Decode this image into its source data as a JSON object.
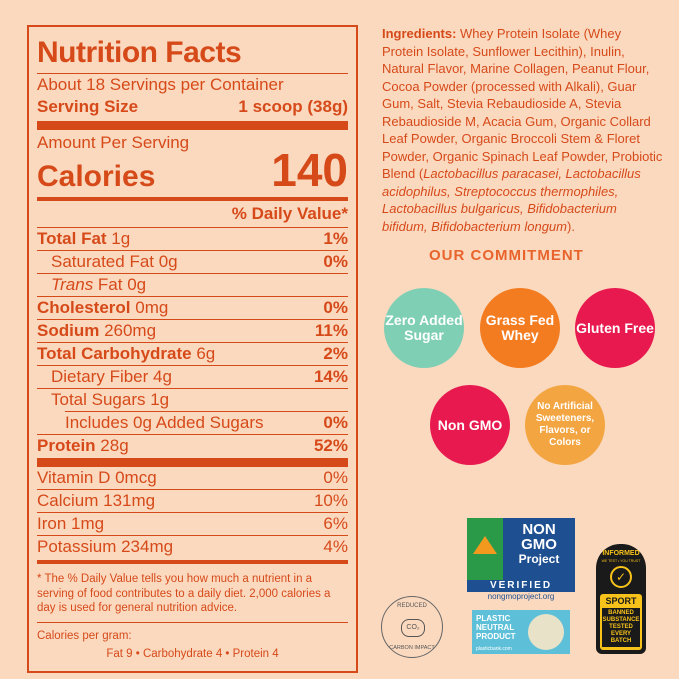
{
  "nutrition": {
    "title": "Nutrition Facts",
    "servings": "About 18 Servings per Container",
    "serving_size_label": "Serving Size",
    "serving_size_value": "1 scoop (38g)",
    "amount_per_serving": "Amount Per Serving",
    "calories_label": "Calories",
    "calories_value": "140",
    "dv_header": "% Daily Value*",
    "rows": [
      {
        "label_bold": "Total Fat",
        "label": " 1g",
        "dv": "1%"
      },
      {
        "label_bold": "",
        "label": "Saturated Fat 0g",
        "dv": "0%"
      },
      {
        "label_bold": "",
        "label_italic": "Trans",
        "label": " Fat 0g",
        "dv": ""
      },
      {
        "label_bold": "Cholesterol",
        "label": " 0mg",
        "dv": "0%"
      },
      {
        "label_bold": "Sodium",
        "label": " 260mg",
        "dv": "11%"
      },
      {
        "label_bold": "Total Carbohydrate",
        "label": " 6g",
        "dv": "2%"
      },
      {
        "label_bold": "",
        "label": "Dietary Fiber 4g",
        "dv": "14%"
      },
      {
        "label_bold": "",
        "label": "Total Sugars 1g",
        "dv": ""
      },
      {
        "label_bold": "",
        "label": "Includes 0g Added Sugars",
        "dv": "0%"
      },
      {
        "label_bold": "Protein",
        "label": " 28g",
        "dv": "52%"
      }
    ],
    "vitamins": [
      {
        "label": "Vitamin D 0mcg",
        "dv": "0%"
      },
      {
        "label": "Calcium 131mg",
        "dv": "10%"
      },
      {
        "label": "Iron 1mg",
        "dv": "6%"
      },
      {
        "label": "Potassium 234mg",
        "dv": "4%"
      }
    ],
    "footnote": "* The % Daily Value tells you how much a nutrient in a serving of food contributes to a daily diet. 2,000 calories a day is used for general nutrition advice.",
    "cal_per_gram_label": "Calories per gram:",
    "cal_per_gram_values": "Fat 9  •  Carbohydrate 4  •  Protein 4"
  },
  "ingredients": {
    "label": "Ingredients:",
    "text_1": " Whey Protein Isolate (Whey Protein Isolate, Sunflower Lecithin), Inulin, Natural Flavor, Marine Collagen, Peanut Flour, Cocoa Powder (processed with Alkali), Guar Gum, Salt, Stevia Rebaudioside A, Stevia Rebaudioside M, Acacia Gum, Organic Collard Leaf Powder, Organic Broccoli Stem & Floret Powder, Organic Spinach Leaf Powder, Probiotic Blend (",
    "text_italic": "Lactobacillus paracasei, Lactobacillus acidophilus, Streptococcus thermophiles, Lactobacillus bulgaricus, Bifidobacterium bifidum, Bifidobacterium longum",
    "text_2": ")."
  },
  "commitment": {
    "title": "OUR COMMITMENT",
    "badges": [
      {
        "text": "Zero Added Sugar",
        "color": "#7fcfb4"
      },
      {
        "text": "Grass Fed Whey",
        "color": "#f47c20"
      },
      {
        "text": "Gluten Free",
        "color": "#e8194f"
      },
      {
        "text": "Non GMO",
        "color": "#e8194f"
      },
      {
        "text": "No Artificial Sweeteners, Flavors, or Colors",
        "color": "#f2a540"
      }
    ]
  },
  "logos": {
    "reduced_top": "REDUCED",
    "reduced_bottom": "CARBON IMPACT",
    "co2": "CO₂",
    "nongmo_line1": "NON",
    "nongmo_line2": "GMO",
    "nongmo_line3": "Project",
    "nongmo_verified": "VERIFIED",
    "nongmo_url": "nongmoproject.org",
    "plastic": "PLASTIC NEUTRAL PRODUCT",
    "plastic_url": "plasticbank.com",
    "informed_top": "INFORMED",
    "informed_sub": "WE TEST • YOU TRUST",
    "sport": "SPORT",
    "banned": "BANNED SUBSTANCE TESTED EVERY BATCH"
  }
}
